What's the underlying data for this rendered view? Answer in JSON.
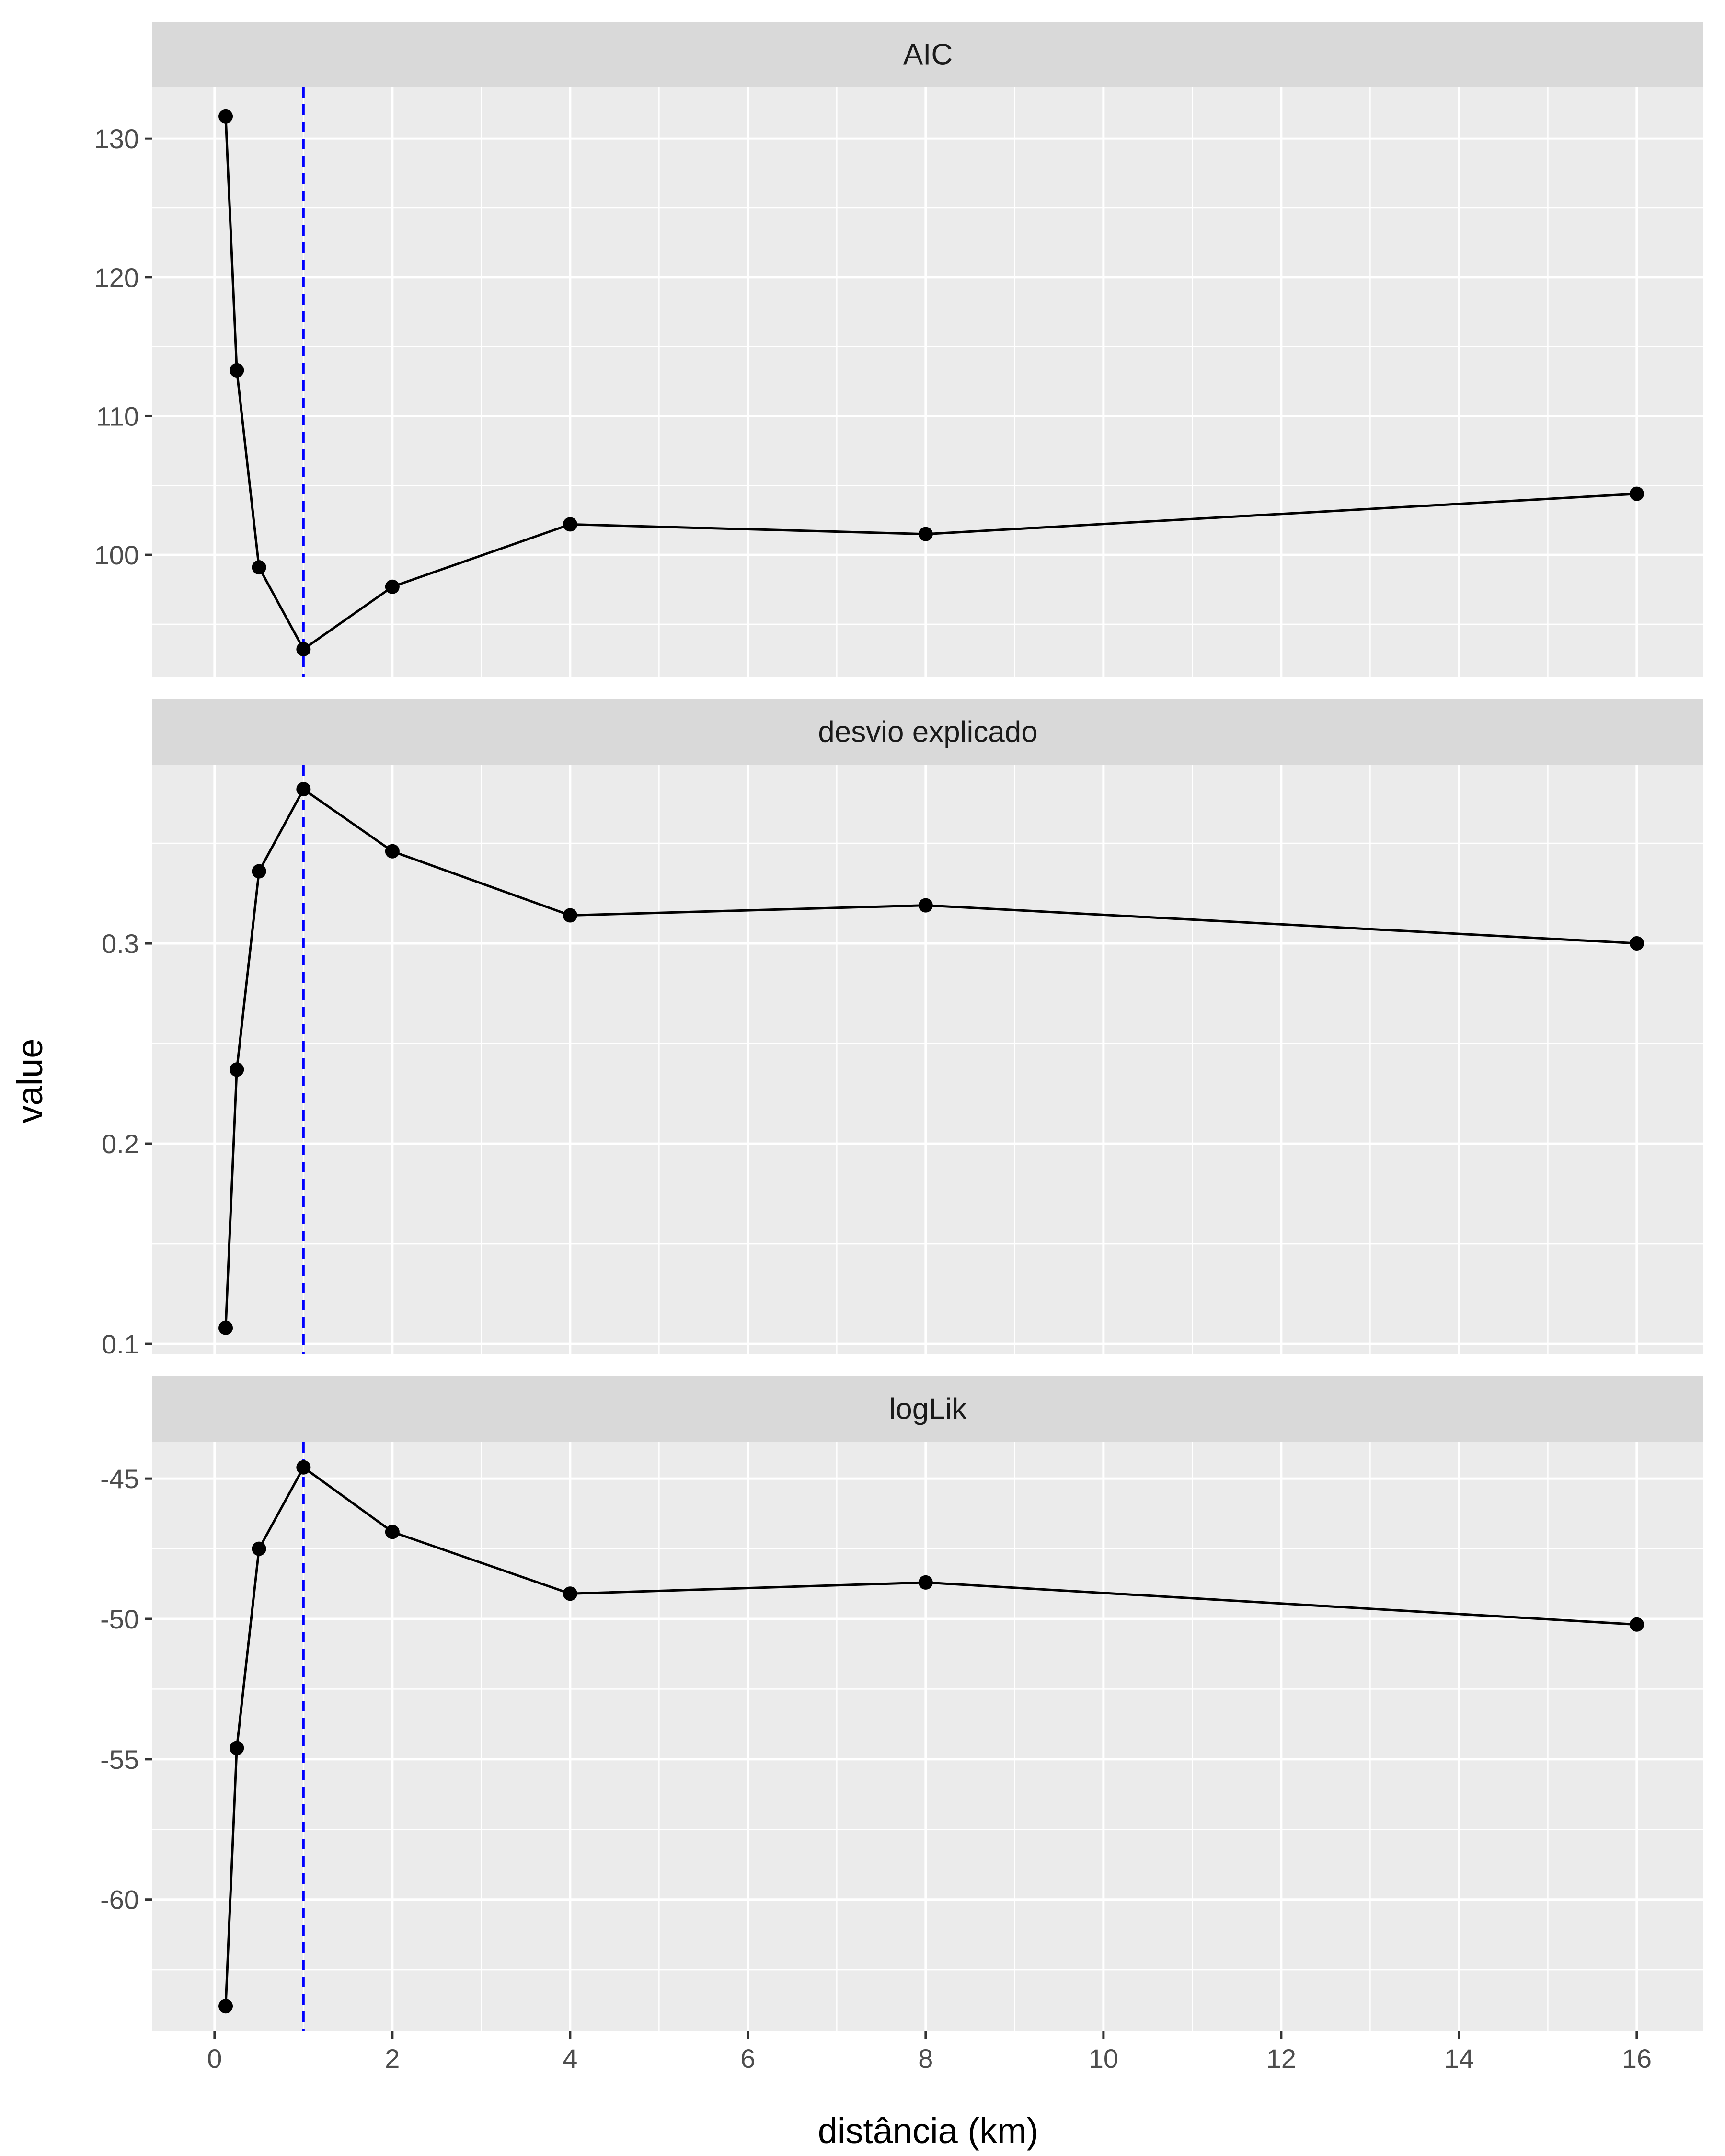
{
  "chart_data": {
    "type": "line",
    "facet_layout": "vertical",
    "xlabel": "distância (km)",
    "ylabel": "value",
    "x_ticks": [
      0,
      2,
      4,
      6,
      8,
      10,
      12,
      14,
      16
    ],
    "xlim": [
      -0.7,
      16.75
    ],
    "reference_line": {
      "x": 1,
      "color": "#0000ff",
      "style": "dashed"
    },
    "colors": {
      "panel_bg": "#ebebeb",
      "strip_bg": "#d9d9d9",
      "grid": "#ffffff",
      "series": "#000000"
    },
    "grid": true,
    "legend": "none",
    "facets": [
      {
        "title": "AIC",
        "y_ticks": [
          100,
          110,
          120,
          130
        ],
        "ylim": [
          91.2,
          133.7
        ],
        "points": [
          {
            "x": 0.125,
            "y": 131.6
          },
          {
            "x": 0.25,
            "y": 113.3
          },
          {
            "x": 0.5,
            "y": 99.1
          },
          {
            "x": 1,
            "y": 93.2
          },
          {
            "x": 2,
            "y": 97.7
          },
          {
            "x": 4,
            "y": 102.2
          },
          {
            "x": 8,
            "y": 101.5
          },
          {
            "x": 16,
            "y": 104.4
          }
        ]
      },
      {
        "title": "desvio explicado",
        "y_ticks": [
          0.1,
          0.2,
          0.3
        ],
        "ylim": [
          0.095,
          0.389
        ],
        "points": [
          {
            "x": 0.125,
            "y": 0.108
          },
          {
            "x": 0.25,
            "y": 0.237
          },
          {
            "x": 0.5,
            "y": 0.336
          },
          {
            "x": 1,
            "y": 0.377
          },
          {
            "x": 2,
            "y": 0.346
          },
          {
            "x": 4,
            "y": 0.314
          },
          {
            "x": 8,
            "y": 0.319
          },
          {
            "x": 16,
            "y": 0.3
          }
        ]
      },
      {
        "title": "logLik",
        "y_ticks": [
          -60,
          -55,
          -50,
          -45
        ],
        "ylim": [
          -64.7,
          -43.7
        ],
        "points": [
          {
            "x": 0.125,
            "y": -63.8
          },
          {
            "x": 0.25,
            "y": -54.6
          },
          {
            "x": 0.5,
            "y": -47.5
          },
          {
            "x": 1,
            "y": -44.6
          },
          {
            "x": 2,
            "y": -46.9
          },
          {
            "x": 4,
            "y": -49.1
          },
          {
            "x": 8,
            "y": -48.7
          },
          {
            "x": 16,
            "y": -50.2
          }
        ]
      }
    ]
  }
}
